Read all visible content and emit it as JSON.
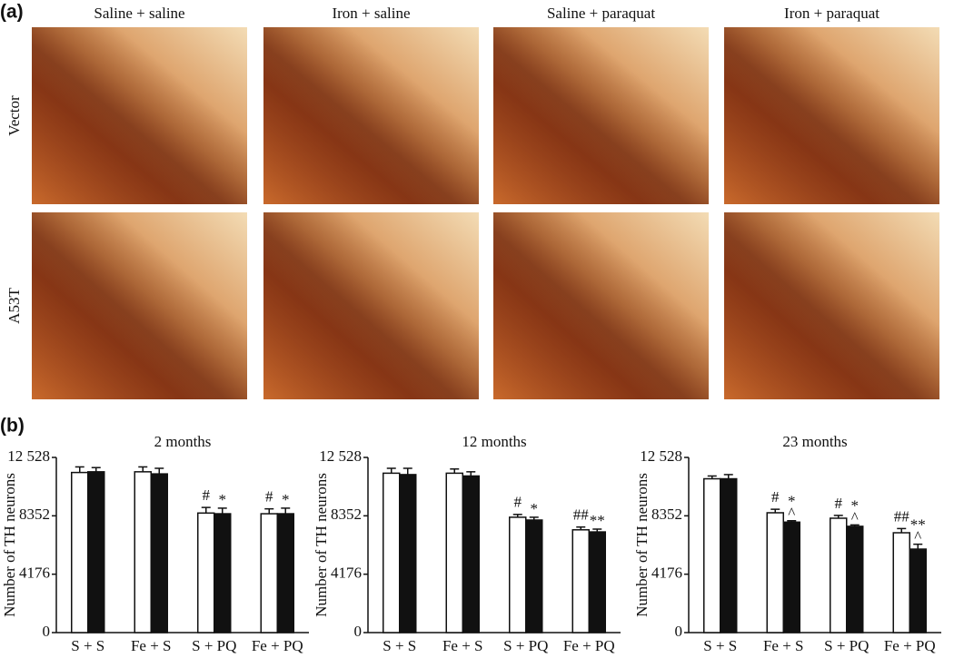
{
  "panel_a": {
    "label": "(a)",
    "columns": [
      "Saline + saline",
      "Iron + saline",
      "Saline + paraquat",
      "Iron + paraquat"
    ],
    "rows": [
      "Vector",
      "A53T"
    ]
  },
  "panel_b": {
    "label": "(b)"
  },
  "chart_data": [
    {
      "type": "bar",
      "title": "2 months",
      "ylabel": "Number of TH neurons",
      "categories": [
        "S + S",
        "Fe + S",
        "S + PQ",
        "Fe + PQ"
      ],
      "ylim": [
        0,
        12528
      ],
      "yticks": [
        0,
        4176,
        8352,
        {
          "value": 12528,
          "label": "12 528"
        }
      ],
      "series": [
        {
          "color": "#ffffff",
          "values": [
            11450,
            11500,
            8550,
            8500
          ],
          "errors": [
            400,
            350,
            400,
            350
          ],
          "significance": [
            null,
            null,
            "#",
            "#"
          ]
        },
        {
          "color": "#111111",
          "values": [
            11500,
            11350,
            8500,
            8500
          ],
          "errors": [
            300,
            400,
            400,
            400
          ],
          "significance": [
            null,
            null,
            "*",
            "*"
          ]
        }
      ]
    },
    {
      "type": "bar",
      "title": "12 months",
      "ylabel": "Number of TH neurons",
      "categories": [
        "S + S",
        "Fe + S",
        "S + PQ",
        "Fe + PQ"
      ],
      "ylim": [
        0,
        12528
      ],
      "yticks": [
        0,
        4176,
        8352,
        {
          "value": 12528,
          "label": "12 528"
        }
      ],
      "series": [
        {
          "color": "#ffffff",
          "values": [
            11400,
            11400,
            8250,
            7350
          ],
          "errors": [
            350,
            300,
            200,
            200
          ],
          "significance": [
            null,
            null,
            "#",
            "##"
          ]
        },
        {
          "color": "#111111",
          "values": [
            11300,
            11200,
            8050,
            7200
          ],
          "errors": [
            450,
            300,
            200,
            200
          ],
          "significance": [
            null,
            null,
            "*",
            "**"
          ]
        }
      ]
    },
    {
      "type": "bar",
      "title": "23 months",
      "ylabel": "Number of TH neurons",
      "categories": [
        "S + S",
        "Fe + S",
        "S + PQ",
        "Fe + PQ"
      ],
      "ylim": [
        0,
        12528
      ],
      "yticks": [
        0,
        4176,
        8352,
        {
          "value": 12528,
          "label": "12 528"
        }
      ],
      "series": [
        {
          "color": "#ffffff",
          "values": [
            11000,
            8570,
            8180,
            7140
          ],
          "errors": [
            200,
            250,
            200,
            300
          ],
          "significance": [
            null,
            "#",
            "#",
            "##"
          ]
        },
        {
          "color": "#111111",
          "values": [
            11000,
            7900,
            7600,
            5970
          ],
          "errors": [
            300,
            100,
            100,
            350
          ],
          "significance": [
            null,
            "*",
            "*",
            "**"
          ],
          "caret": [
            null,
            "^",
            "^",
            "^"
          ]
        }
      ]
    }
  ]
}
